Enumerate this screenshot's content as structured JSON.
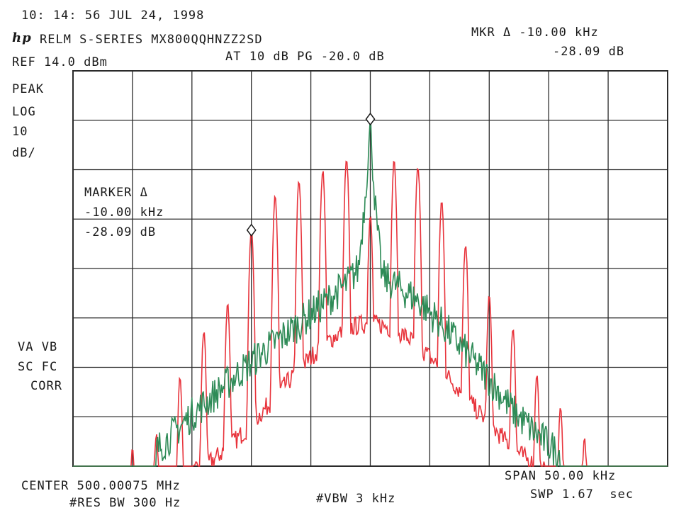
{
  "header": {
    "timestamp": "10: 14: 56 JUL 24, 1998",
    "logo": "hp",
    "title": "RELM S-SERIES MX800QQHNZZ2SD",
    "ref_level": "REF 14.0 dBm",
    "atten_pg": "AT 10 dB PG -20.0 dB",
    "mkr_delta_freq": "MKR Δ -10.00 kHz",
    "mkr_delta_amp": "-28.09 dB"
  },
  "left_labels": {
    "detector": "PEAK",
    "scale": "LOG",
    "scale_value": "10",
    "scale_unit": "dB/",
    "va_vb": "VA VB",
    "sc_fc": "SC FC",
    "corr": "CORR"
  },
  "marker_box": {
    "title": "MARKER Δ",
    "freq": "-10.00 kHz",
    "amp": "-28.09 dB"
  },
  "footer": {
    "center": "CENTER 500.00075 MHz",
    "span": "SPAN 50.00 kHz",
    "res_bw": "#RES BW 300 Hz",
    "vbw": "#VBW 3 kHz",
    "sweep": "SWP 1.67  sec"
  },
  "colors": {
    "grid": "#2b2b2b",
    "modulated_trace": "#e8343c",
    "unmodulated_trace": "#2e8b57",
    "text": "#1a1a1a"
  },
  "chart_data": {
    "type": "line",
    "title": "RELM S-SERIES MX800QQHNZZ2SD",
    "xlabel": "CENTER 500.00075 MHz",
    "ylabel": "",
    "x_unit": "kHz offset from center",
    "xlim": [
      -25,
      25
    ],
    "ylim": [
      -86,
      14
    ],
    "grid": true,
    "divisions": {
      "x": 10,
      "y": 8
    },
    "series": [
      {
        "name": "",
        "color": "#e8343c",
        "x": [
          -20,
          -18,
          -16,
          -14,
          -12,
          -10,
          -8,
          -6,
          -4,
          -2,
          0,
          2,
          4,
          6,
          8,
          10,
          12,
          14,
          16,
          18
        ],
        "y": [
          -82,
          -78,
          -64,
          -52,
          -45,
          -26,
          -18,
          -14,
          -11,
          -9,
          -23,
          -9,
          -10,
          -19,
          -30,
          -43,
          -51,
          -63,
          -71,
          -79
        ]
      },
      {
        "name": "",
        "color": "#2e8b57",
        "x": [
          -18,
          -15,
          -12,
          -9,
          -6,
          -4,
          -2,
          -1,
          -0.5,
          0,
          0.5,
          1,
          2,
          4,
          6,
          8,
          10,
          12,
          14,
          16
        ],
        "y": [
          -82,
          -73,
          -65,
          -57,
          -50,
          -45,
          -40,
          -36,
          -20,
          0,
          -24,
          -38,
          -40,
          -44,
          -50,
          -57,
          -64,
          -72,
          -78,
          -83
        ]
      }
    ],
    "markers": [
      {
        "type": "reference",
        "x": 0,
        "y": 0
      },
      {
        "type": "delta",
        "x": -10,
        "y": -28.09
      }
    ]
  }
}
